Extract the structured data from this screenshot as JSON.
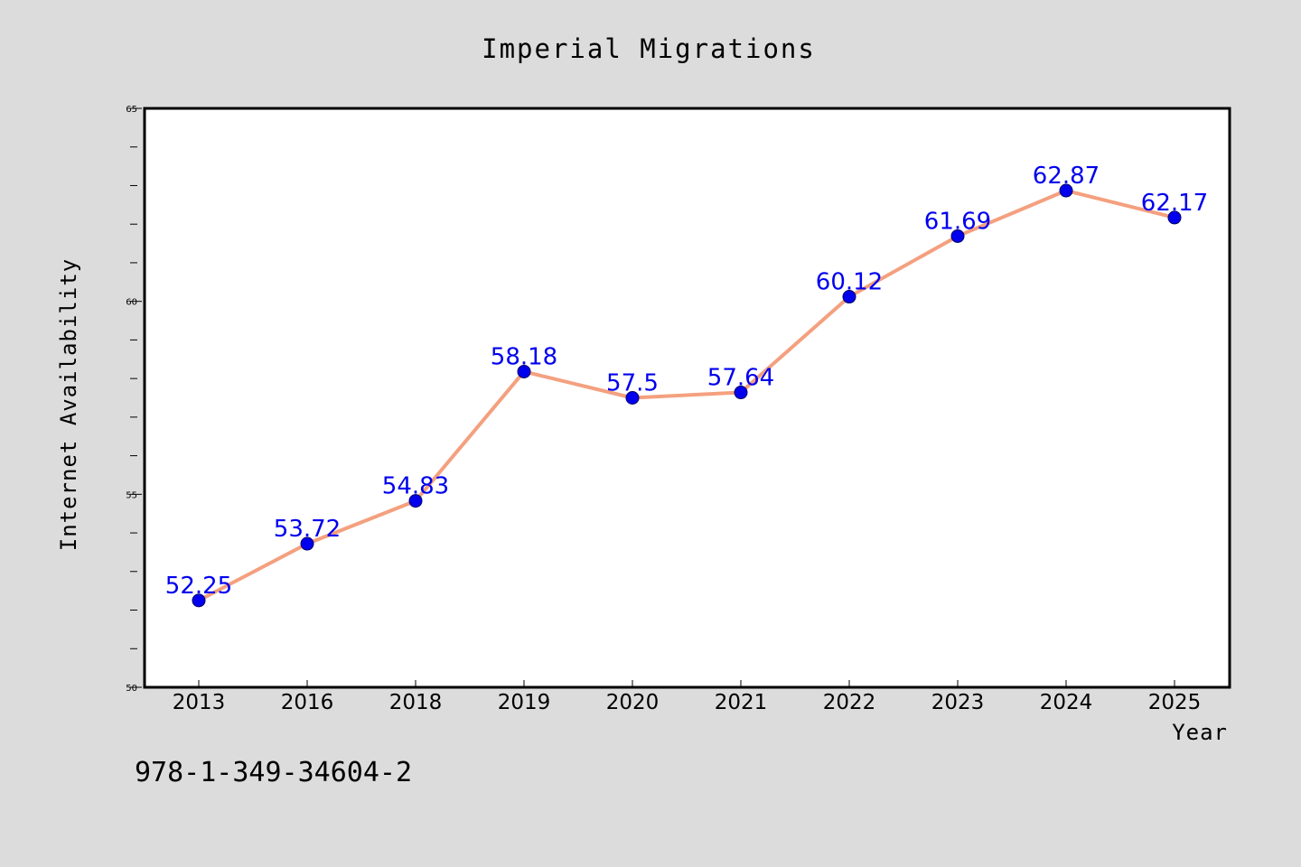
{
  "chart_data": {
    "type": "line",
    "title": "Imperial Migrations",
    "xlabel": "Year",
    "ylabel": "Internet Availability",
    "categories": [
      "2013",
      "2016",
      "2018",
      "2019",
      "2020",
      "2021",
      "2022",
      "2023",
      "2024",
      "2025"
    ],
    "series": [
      {
        "values": [
          52.25,
          53.72,
          54.83,
          58.18,
          57.5,
          57.64,
          60.12,
          61.69,
          62.87,
          62.17
        ],
        "labels": [
          "52.25",
          "53.72",
          "54.83",
          "58.18",
          "57.5",
          "57.64",
          "60.12",
          "61.69",
          "62.87",
          "62.17"
        ]
      }
    ],
    "ylim": [
      50,
      65
    ],
    "yticks": [
      "50",
      "55",
      "60",
      "65"
    ],
    "grid": false,
    "line_color": "#f4a07f",
    "marker_color": "#0000ee",
    "label_color": "#0000ee",
    "annotation": "978-1-349-34604-2"
  }
}
